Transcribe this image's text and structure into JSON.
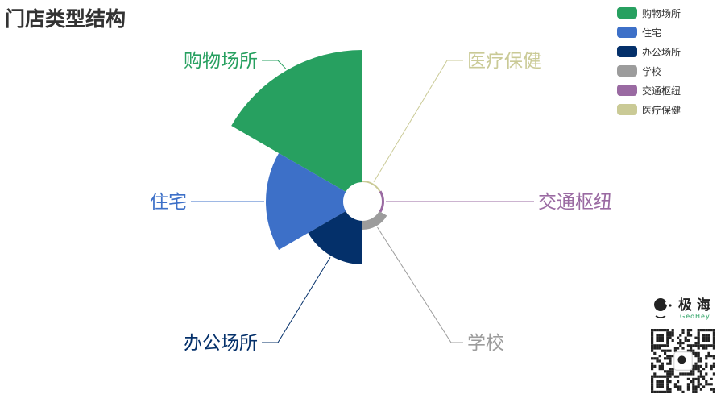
{
  "title": "门店类型结构",
  "chart_data": {
    "type": "pie",
    "rose_type": "area",
    "title": "门店类型结构",
    "categories": [
      "购物场所",
      "住宅",
      "办公场所",
      "学校",
      "交通枢纽",
      "医疗保健"
    ],
    "values": [
      164,
      96,
      54,
      11,
      3,
      2
    ],
    "colors": [
      "#27a060",
      "#3d70c8",
      "#04306a",
      "#9c9c9c",
      "#9a6aa2",
      "#caca96"
    ],
    "legend_position": "top-right"
  },
  "brand": {
    "name": "极海",
    "sub": "GeoHey"
  }
}
